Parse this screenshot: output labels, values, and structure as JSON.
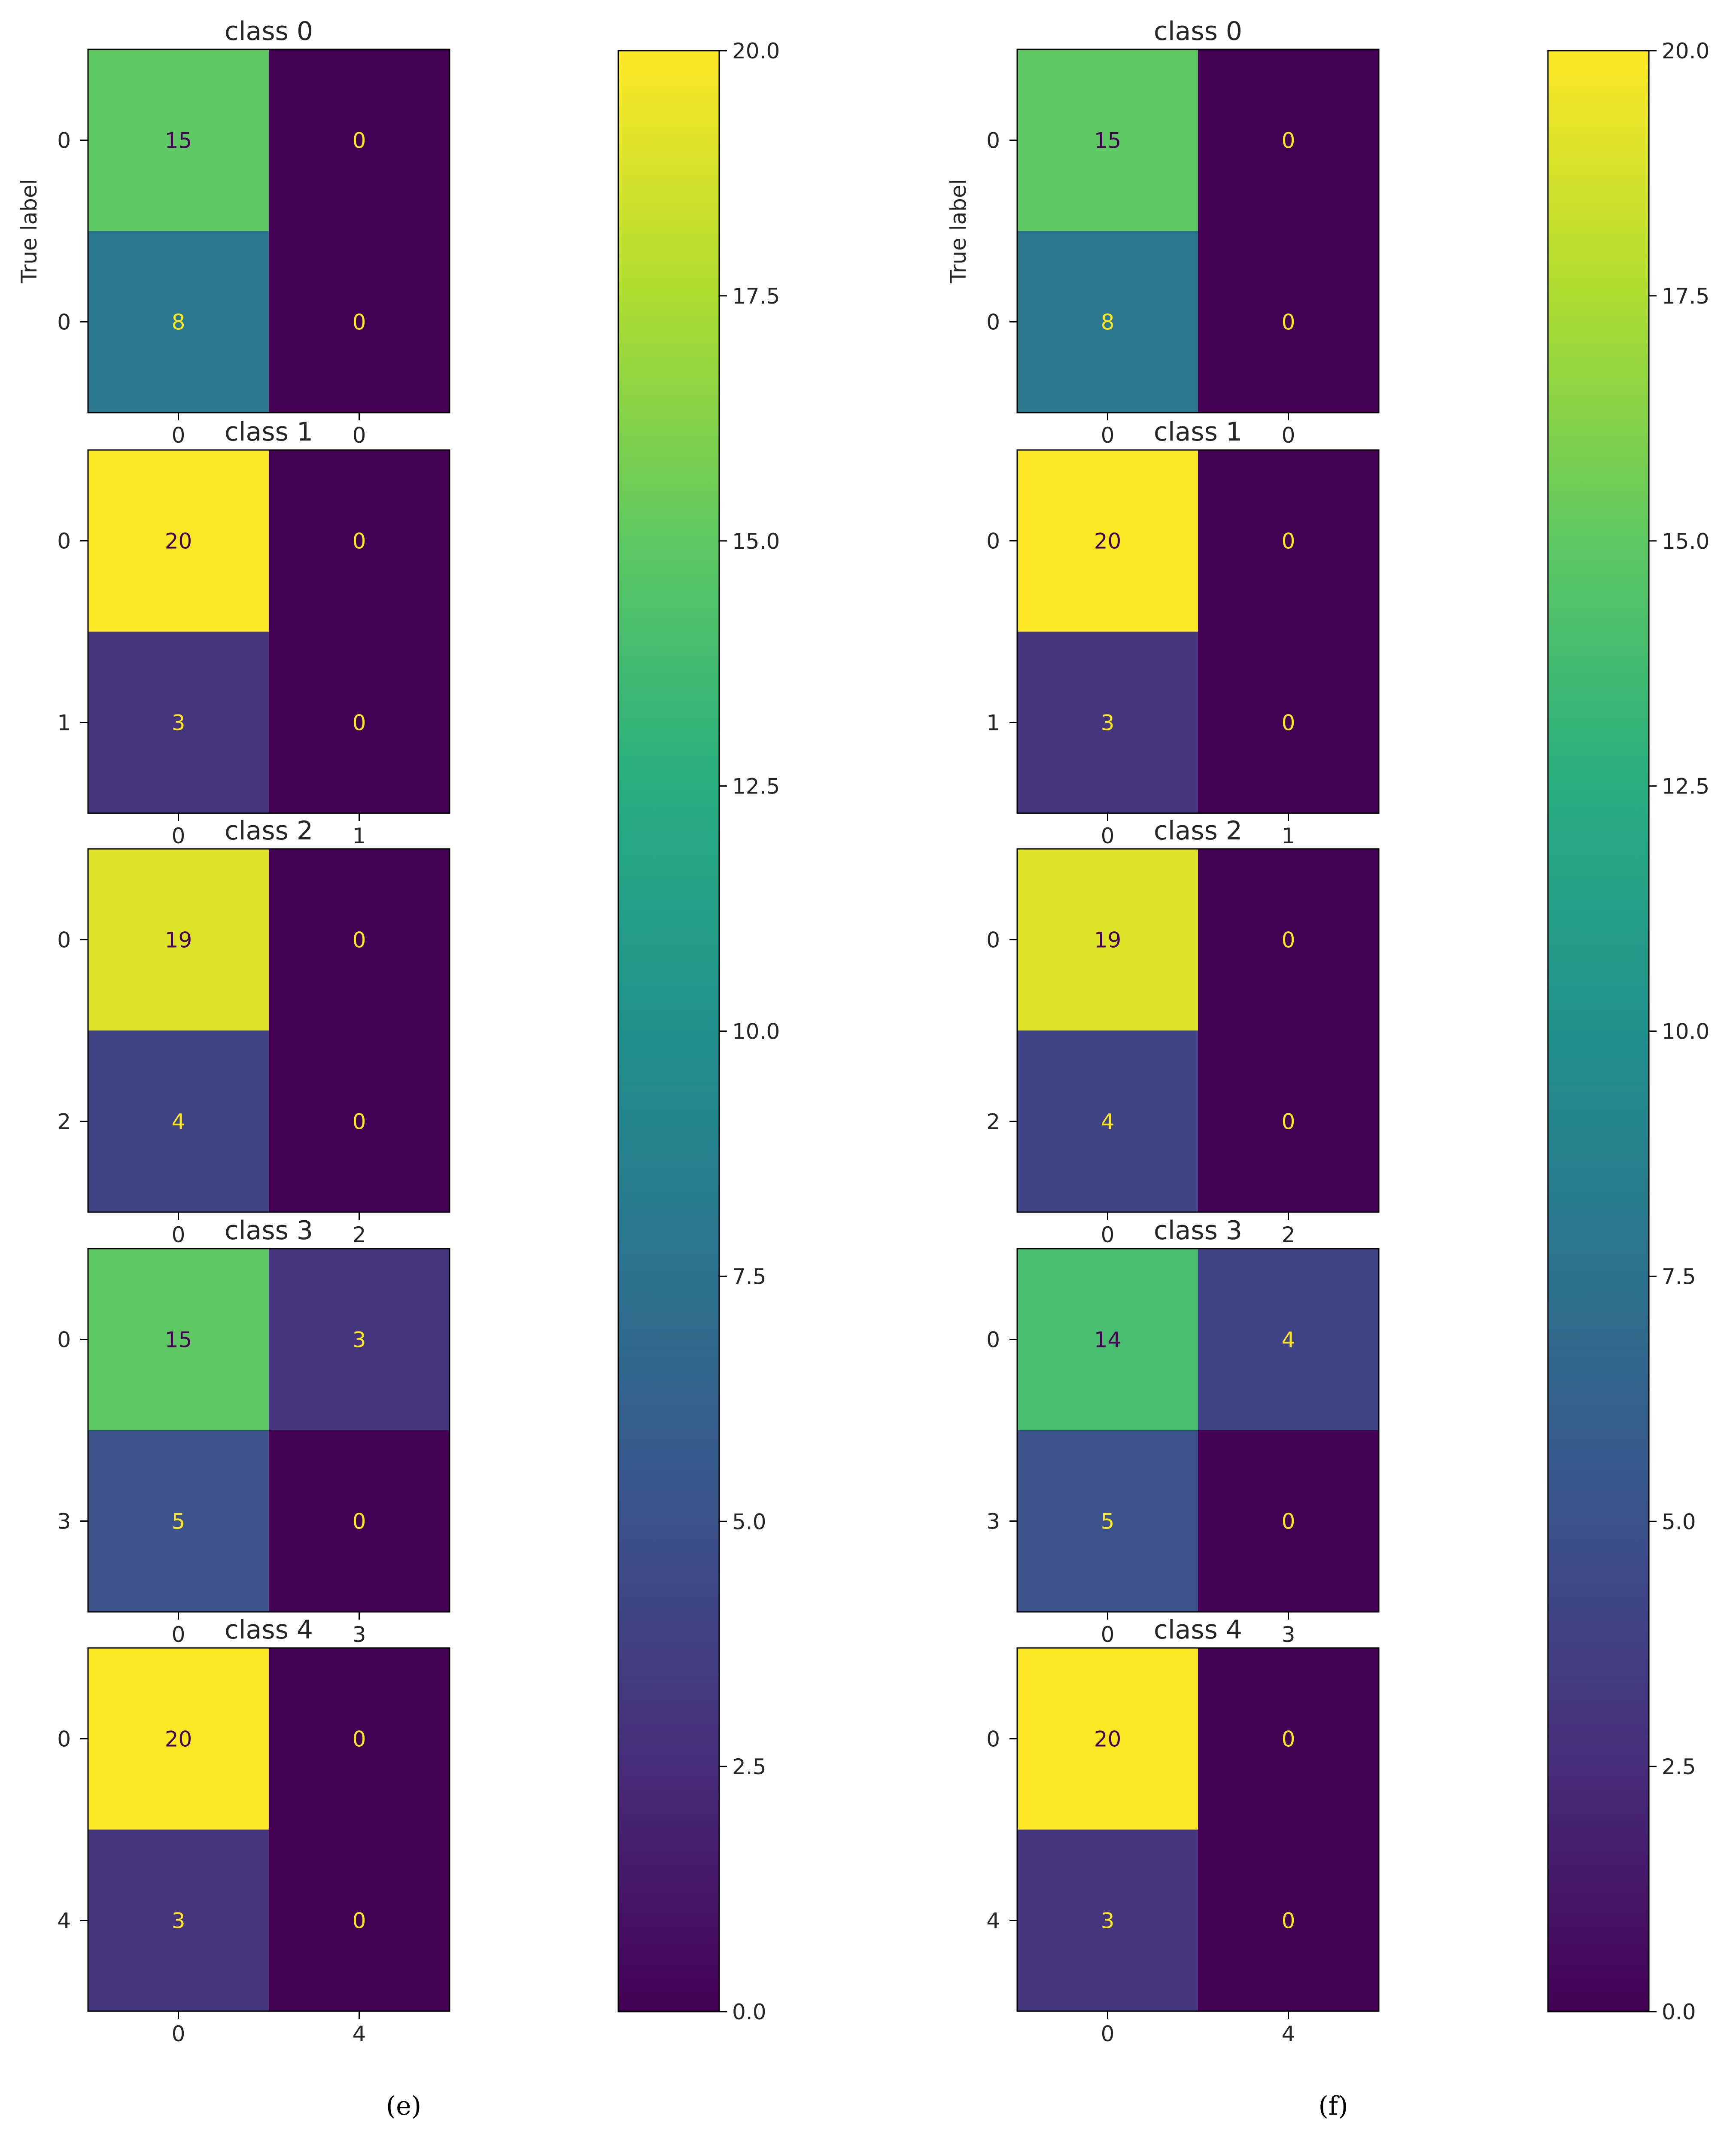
{
  "chart_data": [
    {
      "type": "heatmap",
      "panel": "(e)",
      "ylabel": "True label",
      "colormap": "viridis",
      "colorbar": {
        "min": 0.0,
        "max": 20.0,
        "ticks": [
          "0.0",
          "2.5",
          "5.0",
          "7.5",
          "10.0",
          "12.5",
          "15.0",
          "17.5",
          "20.0"
        ]
      },
      "matrices": [
        {
          "title": "class 0",
          "row_labels": [
            "0",
            "0"
          ],
          "col_labels": [
            "0",
            "0"
          ],
          "values": [
            [
              15,
              0
            ],
            [
              8,
              0
            ]
          ]
        },
        {
          "title": "class 1",
          "row_labels": [
            "0",
            "1"
          ],
          "col_labels": [
            "0",
            "1"
          ],
          "values": [
            [
              20,
              0
            ],
            [
              3,
              0
            ]
          ]
        },
        {
          "title": "class 2",
          "row_labels": [
            "0",
            "2"
          ],
          "col_labels": [
            "0",
            "2"
          ],
          "values": [
            [
              19,
              0
            ],
            [
              4,
              0
            ]
          ]
        },
        {
          "title": "class 3",
          "row_labels": [
            "0",
            "3"
          ],
          "col_labels": [
            "0",
            "3"
          ],
          "values": [
            [
              15,
              3
            ],
            [
              5,
              0
            ]
          ]
        },
        {
          "title": "class 4",
          "row_labels": [
            "0",
            "4"
          ],
          "col_labels": [
            "0",
            "4"
          ],
          "values": [
            [
              20,
              0
            ],
            [
              3,
              0
            ]
          ]
        }
      ]
    },
    {
      "type": "heatmap",
      "panel": "(f)",
      "ylabel": "True label",
      "colormap": "viridis",
      "colorbar": {
        "min": 0.0,
        "max": 20.0,
        "ticks": [
          "0.0",
          "2.5",
          "5.0",
          "7.5",
          "10.0",
          "12.5",
          "15.0",
          "17.5",
          "20.0"
        ]
      },
      "matrices": [
        {
          "title": "class 0",
          "row_labels": [
            "0",
            "0"
          ],
          "col_labels": [
            "0",
            "0"
          ],
          "values": [
            [
              15,
              0
            ],
            [
              8,
              0
            ]
          ]
        },
        {
          "title": "class 1",
          "row_labels": [
            "0",
            "1"
          ],
          "col_labels": [
            "0",
            "1"
          ],
          "values": [
            [
              20,
              0
            ],
            [
              3,
              0
            ]
          ]
        },
        {
          "title": "class 2",
          "row_labels": [
            "0",
            "2"
          ],
          "col_labels": [
            "0",
            "2"
          ],
          "values": [
            [
              19,
              0
            ],
            [
              4,
              0
            ]
          ]
        },
        {
          "title": "class 3",
          "row_labels": [
            "0",
            "3"
          ],
          "col_labels": [
            "0",
            "3"
          ],
          "values": [
            [
              14,
              4
            ],
            [
              5,
              0
            ]
          ]
        },
        {
          "title": "class 4",
          "row_labels": [
            "0",
            "4"
          ],
          "col_labels": [
            "0",
            "4"
          ],
          "values": [
            [
              20,
              0
            ],
            [
              3,
              0
            ]
          ]
        }
      ]
    }
  ]
}
